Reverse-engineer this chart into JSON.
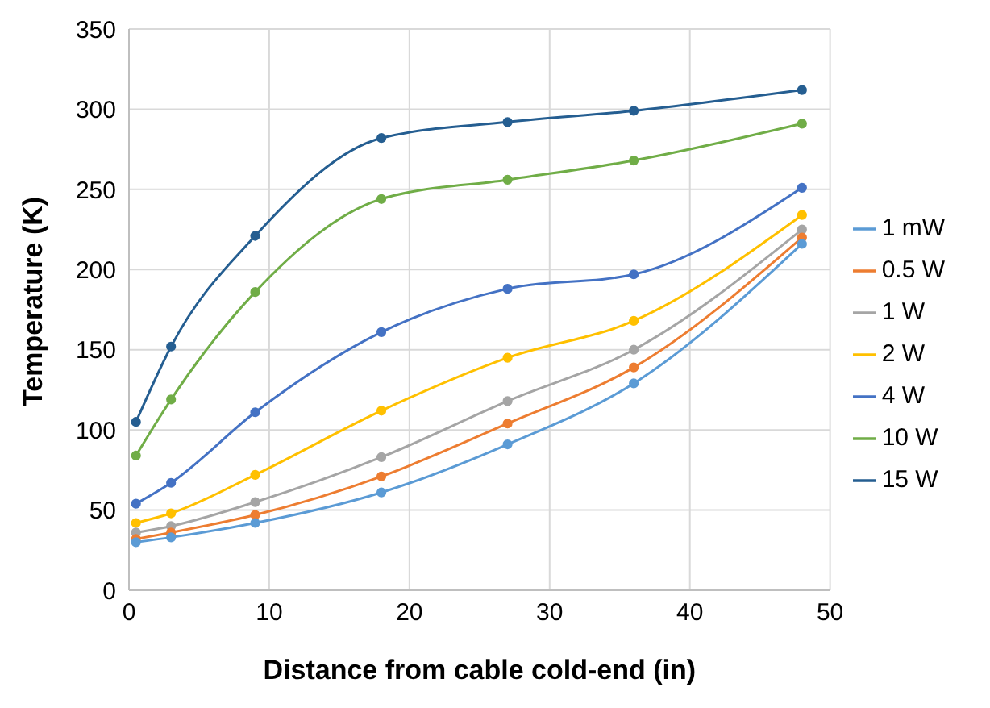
{
  "chart_data": {
    "type": "line",
    "xlabel": "Distance from cable cold-end (in)",
    "ylabel": "Temperature (K)",
    "x": [
      0.5,
      3,
      9,
      18,
      27,
      36,
      48
    ],
    "series": [
      {
        "name": "1 mW",
        "color": "#5b9bd5",
        "values": [
          30,
          33,
          42,
          61,
          91,
          129,
          216
        ]
      },
      {
        "name": "0.5 W",
        "color": "#ed7d31",
        "values": [
          32,
          36,
          47,
          71,
          104,
          139,
          220
        ]
      },
      {
        "name": "1 W",
        "color": "#a5a5a5",
        "values": [
          36,
          40,
          55,
          83,
          118,
          150,
          225
        ]
      },
      {
        "name": "2 W",
        "color": "#ffc000",
        "values": [
          42,
          48,
          72,
          112,
          145,
          168,
          234
        ]
      },
      {
        "name": "4 W",
        "color": "#4472c4",
        "values": [
          54,
          67,
          111,
          161,
          188,
          197,
          251
        ]
      },
      {
        "name": "10 W",
        "color": "#70ad47",
        "values": [
          84,
          119,
          186,
          244,
          256,
          268,
          291
        ]
      },
      {
        "name": "15 W",
        "color": "#255e91",
        "values": [
          105,
          152,
          221,
          282,
          292,
          299,
          312
        ]
      }
    ],
    "xlim": [
      0,
      50
    ],
    "xticks": [
      0,
      10,
      20,
      30,
      40,
      50
    ],
    "ylim": [
      0,
      350
    ],
    "yticks": [
      0,
      50,
      100,
      150,
      200,
      250,
      300,
      350
    ],
    "grid": true,
    "legend": "right",
    "marker": "circle",
    "line_style": "solid"
  }
}
